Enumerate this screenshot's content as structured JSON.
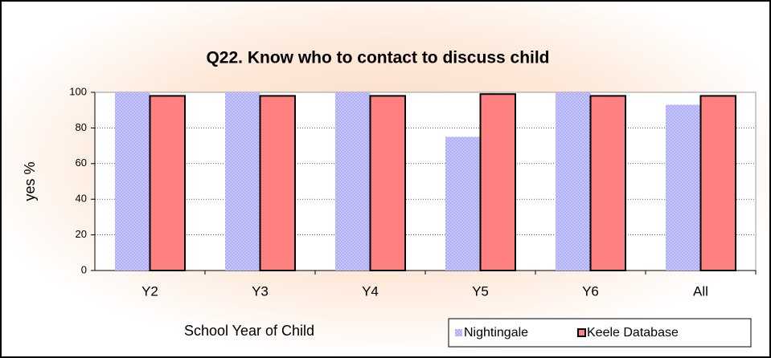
{
  "chart_data": {
    "type": "bar",
    "title": "Q22. Know who to contact to discuss child",
    "x_label": "School Year of Child",
    "y_label": "yes %",
    "categories": [
      "Y2",
      "Y3",
      "Y4",
      "Y5",
      "Y6",
      "All"
    ],
    "series": [
      {
        "name": "Nightingale",
        "color": "#b8b8f8",
        "values": [
          100,
          100,
          100,
          75,
          100,
          93
        ]
      },
      {
        "name": "Keele Database",
        "color": "#ff8080",
        "values": [
          98,
          98,
          98,
          99,
          98,
          98
        ]
      }
    ],
    "ylim": [
      0,
      100
    ],
    "yticks": [
      0,
      20,
      40,
      60,
      80,
      100
    ],
    "grid": true,
    "legend": "bottom-right"
  }
}
